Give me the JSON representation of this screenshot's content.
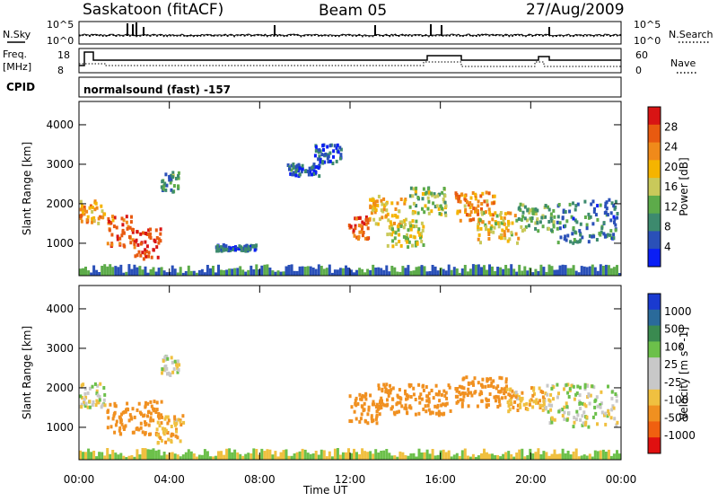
{
  "header": {
    "station": "Saskatoon (fitACF)",
    "beam": "Beam 05",
    "date": "27/Aug/2009"
  },
  "panels": {
    "noise": {
      "left_label": "N.Sky",
      "right_label": "N.Search",
      "left_ticks": [
        "10^5",
        "10^0"
      ],
      "right_ticks": [
        "10^5",
        "10^0"
      ]
    },
    "freq": {
      "left_label_1": "Freq.",
      "left_label_2": "[MHz]",
      "right_label": "Nave",
      "left_ticks": [
        "18",
        "8"
      ],
      "right_ticks": [
        "60",
        "0"
      ]
    },
    "cpid": {
      "label": "CPID",
      "text": "normalsound (fast) -157"
    }
  },
  "colors": {
    "power_scale": [
      "#0a1ef5",
      "#2a50b8",
      "#3d8a6e",
      "#5dab4a",
      "#c9c95a",
      "#f5b400",
      "#f08a1a",
      "#e85a10",
      "#d81414"
    ],
    "velocity_scale": [
      "#e01010",
      "#f06010",
      "#f09020",
      "#f0c040",
      "#c8c8c8",
      "#c8c8c8",
      "#6cc04a",
      "#3a8a50",
      "#2a6a9a",
      "#1a3ad0"
    ]
  },
  "chart_data": [
    {
      "type": "heatmap",
      "title": "Power",
      "xlabel": "",
      "ylabel": "Slant Range [km]",
      "colorbar_label": "Power [dB]",
      "colorbar_ticks": [
        "28",
        "24",
        "20",
        "16",
        "12",
        "8",
        "4"
      ],
      "x_ticks": [
        "00:00",
        "04:00",
        "08:00",
        "12:00",
        "16:00",
        "20:00",
        "00:00"
      ],
      "y_ticks": [
        "4000",
        "3000",
        "2000",
        "1000"
      ],
      "xlim": [
        0,
        24
      ],
      "ylim": [
        180,
        4590
      ],
      "unit_x": "hours UT",
      "blobs": [
        {
          "t0": 0.0,
          "t1": 1.1,
          "r0": 1500,
          "r1": 2100,
          "v": 22
        },
        {
          "t0": 1.2,
          "t1": 2.3,
          "r0": 900,
          "r1": 1700,
          "v": 26
        },
        {
          "t0": 2.3,
          "t1": 3.6,
          "r0": 600,
          "r1": 1400,
          "v": 28
        },
        {
          "t0": 3.6,
          "t1": 4.4,
          "r0": 2300,
          "r1": 2800,
          "v": 10
        },
        {
          "t0": 6.0,
          "t1": 7.8,
          "r0": 800,
          "r1": 950,
          "v": 6
        },
        {
          "t0": 9.2,
          "t1": 10.6,
          "r0": 2700,
          "r1": 3000,
          "v": 6
        },
        {
          "t0": 10.4,
          "t1": 11.6,
          "r0": 3000,
          "r1": 3500,
          "v": 5
        },
        {
          "t0": 11.9,
          "t1": 12.9,
          "r0": 1100,
          "r1": 1700,
          "v": 26
        },
        {
          "t0": 12.8,
          "t1": 14.4,
          "r0": 1400,
          "r1": 2200,
          "v": 20
        },
        {
          "t0": 13.6,
          "t1": 15.2,
          "r0": 900,
          "r1": 1600,
          "v": 16
        },
        {
          "t0": 14.6,
          "t1": 16.2,
          "r0": 1700,
          "r1": 2400,
          "v": 14
        },
        {
          "t0": 16.6,
          "t1": 18.4,
          "r0": 1500,
          "r1": 2300,
          "v": 22
        },
        {
          "t0": 17.6,
          "t1": 19.4,
          "r0": 1000,
          "r1": 1800,
          "v": 18
        },
        {
          "t0": 19.4,
          "t1": 21.0,
          "r0": 1300,
          "r1": 2000,
          "v": 12
        },
        {
          "t0": 21.0,
          "t1": 23.8,
          "r0": 1000,
          "r1": 2100,
          "v": 8
        }
      ]
    },
    {
      "type": "heatmap",
      "title": "Velocity",
      "xlabel": "Time UT",
      "ylabel": "Slant Range [km]",
      "colorbar_label": "Velocity [m s^-1]",
      "colorbar_ticks": [
        "1000",
        "500",
        "100",
        "25",
        "-25",
        "-100",
        "-500",
        "-1000"
      ],
      "x_ticks": [
        "00:00",
        "04:00",
        "08:00",
        "12:00",
        "16:00",
        "20:00",
        "00:00"
      ],
      "y_ticks": [
        "4000",
        "3000",
        "2000",
        "1000"
      ],
      "xlim": [
        0,
        24
      ],
      "ylim": [
        180,
        4590
      ],
      "unit_x": "hours UT",
      "blobs": [
        {
          "t0": 0.0,
          "t1": 1.1,
          "r0": 1500,
          "r1": 2100,
          "v": 0
        },
        {
          "t0": 1.2,
          "t1": 3.6,
          "r0": 800,
          "r1": 1700,
          "v": -300
        },
        {
          "t0": 3.4,
          "t1": 4.6,
          "r0": 600,
          "r1": 1300,
          "v": -80
        },
        {
          "t0": 3.6,
          "t1": 4.4,
          "r0": 2300,
          "r1": 2800,
          "v": 0
        },
        {
          "t0": 11.9,
          "t1": 13.2,
          "r0": 1100,
          "r1": 1900,
          "v": -300
        },
        {
          "t0": 13.2,
          "t1": 16.4,
          "r0": 1300,
          "r1": 2100,
          "v": -200
        },
        {
          "t0": 16.6,
          "t1": 18.9,
          "r0": 1500,
          "r1": 2300,
          "v": -300
        },
        {
          "t0": 18.9,
          "t1": 20.6,
          "r0": 1400,
          "r1": 2000,
          "v": -80
        },
        {
          "t0": 20.6,
          "t1": 23.8,
          "r0": 1000,
          "r1": 2100,
          "v": 0
        }
      ]
    }
  ]
}
